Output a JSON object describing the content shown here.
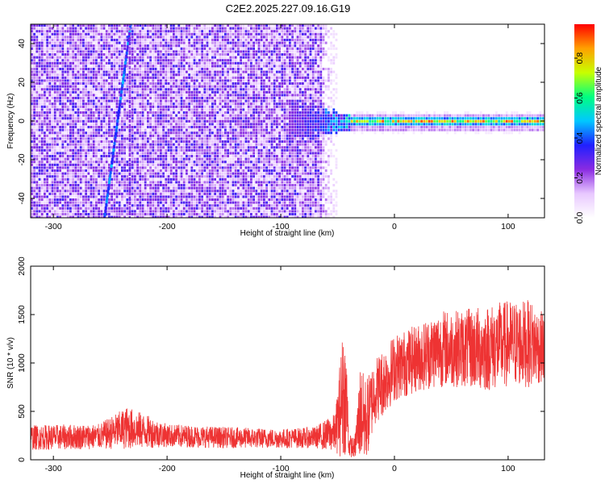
{
  "title": "C2E2.2025.227.09.16.G19",
  "chart_data": [
    {
      "type": "heatmap",
      "name": "spectrogram",
      "xlabel": "Height of straight line (km)",
      "ylabel": "Frequency (Hz)",
      "xlim": [
        -320,
        132
      ],
      "ylim": [
        -50,
        50
      ],
      "xticks": [
        -300,
        -200,
        -100,
        0,
        100
      ],
      "yticks": [
        -40,
        -20,
        0,
        20,
        40
      ],
      "colorbar": {
        "label": "Normalized spectral amplitude",
        "range": [
          0.0,
          0.97
        ],
        "ticks": [
          0.0,
          0.2,
          0.4,
          0.6,
          0.8
        ],
        "colormap": [
          "#ffffff",
          "#e8c8ff",
          "#8a2be2",
          "#2020ff",
          "#00c8ff",
          "#00ff80",
          "#c8ff00",
          "#ffa000",
          "#ff0000"
        ]
      },
      "features": {
        "noise_region_km": [
          -320,
          -55
        ],
        "signal_line_km": [
          -40,
          132
        ],
        "signal_line_freq_hz": 0,
        "diagonal_streak": {
          "from": [
            -255,
            -50
          ],
          "to": [
            -232,
            50
          ]
        }
      }
    },
    {
      "type": "line",
      "name": "snr",
      "xlabel": "Height of straight line (km)",
      "ylabel": "SNR (10 * v/v)",
      "xlim": [
        -320,
        132
      ],
      "ylim": [
        0,
        2000
      ],
      "xticks": [
        -300,
        -200,
        -100,
        0,
        100
      ],
      "yticks": [
        0,
        500,
        1000,
        1500,
        2000
      ],
      "color": "#ee3333",
      "envelope": {
        "x": [
          -320,
          -260,
          -235,
          -200,
          -150,
          -100,
          -70,
          -52,
          -45,
          -42,
          -40,
          -35,
          -30,
          -26,
          -22,
          -18,
          -10,
          0,
          20,
          40,
          60,
          80,
          100,
          120,
          132
        ],
        "mean": [
          230,
          240,
          330,
          250,
          230,
          220,
          230,
          280,
          700,
          600,
          150,
          120,
          500,
          400,
          500,
          700,
          800,
          950,
          1050,
          1150,
          1150,
          1150,
          1200,
          1200,
          1150
        ],
        "amp": [
          130,
          130,
          220,
          120,
          110,
          100,
          110,
          200,
          700,
          500,
          120,
          100,
          500,
          450,
          400,
          350,
          350,
          350,
          350,
          400,
          400,
          450,
          450,
          450,
          350
        ]
      }
    }
  ]
}
